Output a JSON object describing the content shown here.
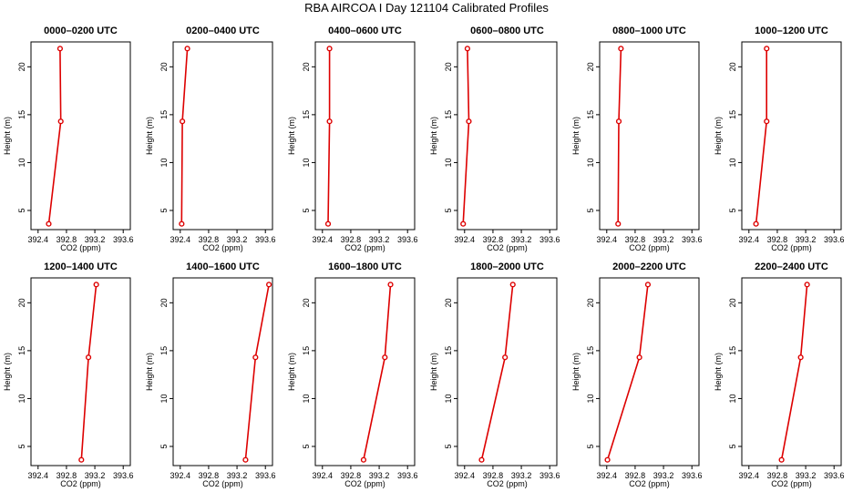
{
  "title": "RBA AIRCOA I  Day 121104  Calibrated Profiles",
  "colors": {
    "profile_line": "#dd0000",
    "axis": "#000000"
  },
  "chart_data": [
    {
      "type": "line",
      "title": "0000–0200 UTC",
      "xlabel": "CO2 (ppm)",
      "ylabel": "Height (m)",
      "xlim": [
        392.3,
        393.7
      ],
      "ylim": [
        3,
        22.6
      ],
      "xticks": [
        "392.4",
        "392.8",
        "393.2",
        "393.6"
      ],
      "yticks": [
        "5",
        "10",
        "15",
        "20"
      ],
      "x": [
        392.55,
        392.72,
        392.71
      ],
      "y": [
        3.6,
        14.3,
        21.9
      ]
    },
    {
      "type": "line",
      "title": "0200–0400 UTC",
      "xlabel": "CO2 (ppm)",
      "ylabel": "Height (m)",
      "xlim": [
        392.3,
        393.7
      ],
      "ylim": [
        3,
        22.6
      ],
      "xticks": [
        "392.4",
        "392.8",
        "393.2",
        "393.6"
      ],
      "yticks": [
        "5",
        "10",
        "15",
        "20"
      ],
      "x": [
        392.42,
        392.43,
        392.5
      ],
      "y": [
        3.6,
        14.3,
        21.9
      ]
    },
    {
      "type": "line",
      "title": "0400–0600 UTC",
      "xlabel": "CO2 (ppm)",
      "ylabel": "Height (m)",
      "xlim": [
        392.3,
        393.7
      ],
      "ylim": [
        3,
        22.6
      ],
      "xticks": [
        "392.4",
        "392.8",
        "393.2",
        "393.6"
      ],
      "yticks": [
        "5",
        "10",
        "15",
        "20"
      ],
      "x": [
        392.48,
        392.5,
        392.5
      ],
      "y": [
        3.6,
        14.3,
        21.9
      ]
    },
    {
      "type": "line",
      "title": "0600–0800 UTC",
      "xlabel": "CO2 (ppm)",
      "ylabel": "Height (m)",
      "xlim": [
        392.3,
        393.7
      ],
      "ylim": [
        3,
        22.6
      ],
      "xticks": [
        "392.4",
        "392.8",
        "393.2",
        "393.6"
      ],
      "yticks": [
        "5",
        "10",
        "15",
        "20"
      ],
      "x": [
        392.38,
        392.46,
        392.44
      ],
      "y": [
        3.6,
        14.3,
        21.9
      ]
    },
    {
      "type": "line",
      "title": "0800–1000 UTC",
      "xlabel": "CO2 (ppm)",
      "ylabel": "Height (m)",
      "xlim": [
        392.3,
        393.7
      ],
      "ylim": [
        3,
        22.6
      ],
      "xticks": [
        "392.4",
        "392.8",
        "393.2",
        "393.6"
      ],
      "yticks": [
        "5",
        "10",
        "15",
        "20"
      ],
      "x": [
        392.56,
        392.57,
        392.6
      ],
      "y": [
        3.6,
        14.3,
        21.9
      ]
    },
    {
      "type": "line",
      "title": "1000–1200 UTC",
      "xlabel": "CO2 (ppm)",
      "ylabel": "Height (m)",
      "xlim": [
        392.3,
        393.7
      ],
      "ylim": [
        3,
        22.6
      ],
      "xticks": [
        "392.4",
        "392.8",
        "393.2",
        "393.6"
      ],
      "yticks": [
        "5",
        "10",
        "15",
        "20"
      ],
      "x": [
        392.5,
        392.65,
        392.65
      ],
      "y": [
        3.6,
        14.3,
        21.9
      ]
    },
    {
      "type": "line",
      "title": "1200–1400 UTC",
      "xlabel": "CO2 (ppm)",
      "ylabel": "Height (m)",
      "xlim": [
        392.3,
        393.7
      ],
      "ylim": [
        3,
        22.6
      ],
      "xticks": [
        "392.4",
        "392.8",
        "393.2",
        "393.6"
      ],
      "yticks": [
        "5",
        "10",
        "15",
        "20"
      ],
      "x": [
        393.01,
        393.11,
        393.22
      ],
      "y": [
        3.6,
        14.3,
        21.9
      ]
    },
    {
      "type": "line",
      "title": "1400–1600 UTC",
      "xlabel": "CO2 (ppm)",
      "ylabel": "Height (m)",
      "xlim": [
        392.3,
        393.7
      ],
      "ylim": [
        3,
        22.6
      ],
      "xticks": [
        "392.4",
        "392.8",
        "393.2",
        "393.6"
      ],
      "yticks": [
        "5",
        "10",
        "15",
        "20"
      ],
      "x": [
        393.32,
        393.46,
        393.65
      ],
      "y": [
        3.6,
        14.3,
        21.9
      ]
    },
    {
      "type": "line",
      "title": "1600–1800 UTC",
      "xlabel": "CO2 (ppm)",
      "ylabel": "Height (m)",
      "xlim": [
        392.3,
        393.7
      ],
      "ylim": [
        3,
        22.6
      ],
      "xticks": [
        "392.4",
        "392.8",
        "393.2",
        "393.6"
      ],
      "yticks": [
        "5",
        "10",
        "15",
        "20"
      ],
      "x": [
        392.98,
        393.28,
        393.36
      ],
      "y": [
        3.6,
        14.3,
        21.9
      ]
    },
    {
      "type": "line",
      "title": "1800–2000 UTC",
      "xlabel": "CO2 (ppm)",
      "ylabel": "Height (m)",
      "xlim": [
        392.3,
        393.7
      ],
      "ylim": [
        3,
        22.6
      ],
      "xticks": [
        "392.4",
        "392.8",
        "393.2",
        "393.6"
      ],
      "yticks": [
        "5",
        "10",
        "15",
        "20"
      ],
      "x": [
        392.64,
        392.97,
        393.08
      ],
      "y": [
        3.6,
        14.3,
        21.9
      ]
    },
    {
      "type": "line",
      "title": "2000–2200 UTC",
      "xlabel": "CO2 (ppm)",
      "ylabel": "Height (m)",
      "xlim": [
        392.3,
        393.7
      ],
      "ylim": [
        3,
        22.6
      ],
      "xticks": [
        "392.4",
        "392.8",
        "393.2",
        "393.6"
      ],
      "yticks": [
        "5",
        "10",
        "15",
        "20"
      ],
      "x": [
        392.41,
        392.86,
        392.98
      ],
      "y": [
        3.6,
        14.3,
        21.9
      ]
    },
    {
      "type": "line",
      "title": "2200–2400 UTC",
      "xlabel": "CO2 (ppm)",
      "ylabel": "Height (m)",
      "xlim": [
        392.3,
        393.7
      ],
      "ylim": [
        3,
        22.6
      ],
      "xticks": [
        "392.4",
        "392.8",
        "393.2",
        "393.6"
      ],
      "yticks": [
        "5",
        "10",
        "15",
        "20"
      ],
      "x": [
        392.86,
        393.13,
        393.22
      ],
      "y": [
        3.6,
        14.3,
        21.9
      ]
    }
  ]
}
